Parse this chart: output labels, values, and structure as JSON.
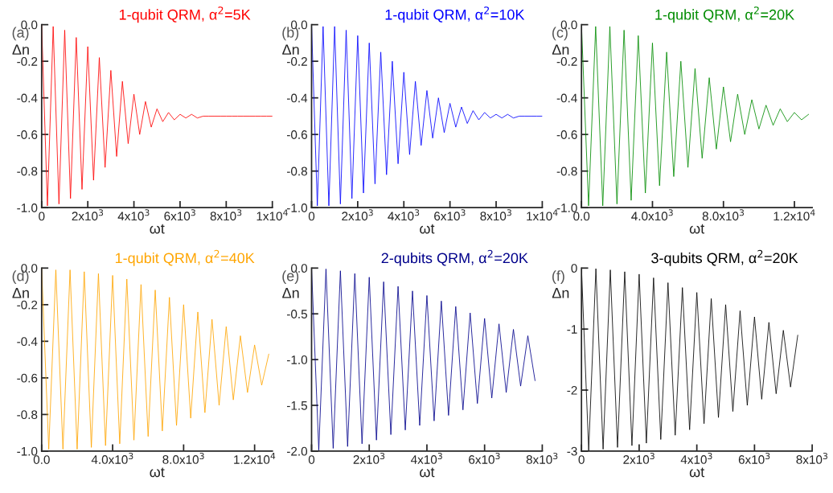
{
  "chart_data": [
    {
      "type": "line",
      "title": "1-qubit QRM, α$^{2}$=5K",
      "xlabel": "ωt",
      "ylabel": "Δn",
      "annotations": [
        "(a)"
      ],
      "grid": false,
      "legend": false,
      "xlim": [
        0,
        10000
      ],
      "xticks": [
        0,
        {
          "value": 2000,
          "label": "2x10$^{3}$"
        },
        {
          "value": 4000,
          "label": "4x10$^{3}$"
        },
        {
          "value": 6000,
          "label": "6x10$^{3}$"
        },
        {
          "value": 8000,
          "label": "8x10$^{3}$"
        },
        {
          "value": 10000,
          "label": "1x10$^{4}$"
        }
      ],
      "ylim": [
        -1,
        0
      ],
      "yticks": [
        {
          "value": -1,
          "label": "-1.0"
        },
        -0.8,
        -0.6,
        -0.4,
        -0.2,
        {
          "value": 0,
          "label": "0.0"
        }
      ],
      "series": [
        {
          "color": "#ff0000",
          "x": [
            0,
            250,
            500,
            750,
            1000,
            1250,
            1500,
            1750,
            2000,
            2250,
            2500,
            2750,
            3000,
            3250,
            3500,
            3750,
            4000,
            4250,
            4500,
            4750,
            5000,
            5250,
            5500,
            5750,
            6000,
            6250,
            6500,
            6750,
            7000,
            7250,
            7500,
            7750,
            8000,
            8250,
            8500,
            8750,
            9000,
            9250,
            9500,
            9750,
            10000
          ],
          "values": [
            0,
            -0.99,
            -0.01,
            -0.98,
            -0.03,
            -0.95,
            -0.07,
            -0.9,
            -0.12,
            -0.85,
            -0.18,
            -0.78,
            -0.25,
            -0.72,
            -0.31,
            -0.65,
            -0.38,
            -0.6,
            -0.42,
            -0.56,
            -0.46,
            -0.53,
            -0.48,
            -0.52,
            -0.49,
            -0.51,
            -0.49,
            -0.51,
            -0.5,
            -0.5,
            -0.5,
            -0.5,
            -0.5,
            -0.5,
            -0.5,
            -0.5,
            -0.5,
            -0.5,
            -0.5,
            -0.5,
            -0.5
          ]
        }
      ]
    },
    {
      "type": "line",
      "title": "1-qubit QRM, α$^{2}$=10K",
      "xlabel": "ωt",
      "ylabel": "Δn",
      "annotations": [
        "(b)"
      ],
      "grid": false,
      "legend": false,
      "xlim": [
        0,
        10000
      ],
      "xticks": [
        0,
        {
          "value": 2000,
          "label": "2x10$^{3}$"
        },
        {
          "value": 4000,
          "label": "4x10$^{3}$"
        },
        {
          "value": 6000,
          "label": "6x10$^{3}$"
        },
        {
          "value": 8000,
          "label": "8x10$^{3}$"
        },
        {
          "value": 10000,
          "label": "1x10$^{4}$"
        }
      ],
      "ylim": [
        -1,
        0
      ],
      "yticks": [
        {
          "value": -1,
          "label": "-1.0"
        },
        -0.8,
        -0.6,
        -0.4,
        -0.2,
        {
          "value": 0,
          "label": "0.0"
        }
      ],
      "series": [
        {
          "color": "#0000ff",
          "x": [
            0,
            250,
            500,
            750,
            1000,
            1250,
            1500,
            1750,
            2000,
            2250,
            2500,
            2750,
            3000,
            3250,
            3500,
            3750,
            4000,
            4250,
            4500,
            4750,
            5000,
            5250,
            5500,
            5750,
            6000,
            6250,
            6500,
            6750,
            7000,
            7250,
            7500,
            7750,
            8000,
            8250,
            8500,
            8750,
            9000,
            9250,
            9500,
            9750,
            10000
          ],
          "values": [
            0,
            -0.99,
            -0.01,
            -0.99,
            -0.01,
            -0.98,
            -0.03,
            -0.95,
            -0.06,
            -0.92,
            -0.1,
            -0.87,
            -0.15,
            -0.82,
            -0.2,
            -0.76,
            -0.26,
            -0.71,
            -0.31,
            -0.66,
            -0.36,
            -0.62,
            -0.4,
            -0.59,
            -0.43,
            -0.56,
            -0.45,
            -0.54,
            -0.47,
            -0.52,
            -0.48,
            -0.51,
            -0.49,
            -0.51,
            -0.49,
            -0.51,
            -0.5,
            -0.5,
            -0.5,
            -0.5,
            -0.5
          ]
        }
      ]
    },
    {
      "type": "line",
      "title": "1-qubit QRM, α$^{2}$=20K",
      "xlabel": "ωt",
      "ylabel": "Δn",
      "annotations": [
        "(c)"
      ],
      "grid": false,
      "legend": false,
      "xlim": [
        0,
        13000
      ],
      "xticks": [
        {
          "value": 0,
          "label": "0.0"
        },
        {
          "value": 4000,
          "label": "4.0x10$^{3}$"
        },
        {
          "value": 8000,
          "label": "8.0x10$^{3}$"
        },
        {
          "value": 12000,
          "label": "1.2x10$^{4}$"
        }
      ],
      "ylim": [
        -1,
        0
      ],
      "yticks": [
        {
          "value": -1,
          "label": "-1.0"
        },
        -0.8,
        -0.6,
        -0.4,
        -0.2,
        {
          "value": 0,
          "label": "0.0"
        }
      ],
      "series": [
        {
          "color": "#008c00",
          "x": [
            0,
            400,
            800,
            1200,
            1600,
            2000,
            2400,
            2800,
            3200,
            3600,
            4000,
            4400,
            4800,
            5200,
            5600,
            6000,
            6400,
            6800,
            7200,
            7600,
            8000,
            8400,
            8800,
            9200,
            9600,
            10000,
            10400,
            10800,
            11200,
            11600,
            12000,
            12400,
            12800
          ],
          "values": [
            0,
            -0.99,
            -0.01,
            -0.99,
            -0.01,
            -0.98,
            -0.03,
            -0.96,
            -0.06,
            -0.92,
            -0.1,
            -0.88,
            -0.15,
            -0.83,
            -0.2,
            -0.78,
            -0.24,
            -0.73,
            -0.29,
            -0.68,
            -0.34,
            -0.64,
            -0.38,
            -0.6,
            -0.41,
            -0.57,
            -0.44,
            -0.55,
            -0.46,
            -0.53,
            -0.48,
            -0.52,
            -0.49
          ]
        }
      ]
    },
    {
      "type": "line",
      "title": "1-qubit QRM, α$^{2}$=40K",
      "xlabel": "ωt",
      "ylabel": "Δn",
      "annotations": [
        "(d)"
      ],
      "grid": false,
      "legend": false,
      "xlim": [
        0,
        13000
      ],
      "xticks": [
        {
          "value": 0,
          "label": "0.0"
        },
        {
          "value": 4000,
          "label": "4.0x10$^{3}$"
        },
        {
          "value": 8000,
          "label": "8.0x10$^{3}$"
        },
        {
          "value": 12000,
          "label": "1.2x10$^{4}$"
        }
      ],
      "ylim": [
        -1,
        0
      ],
      "yticks": [
        {
          "value": -1,
          "label": "-1.0"
        },
        -0.8,
        -0.6,
        -0.4,
        -0.2,
        {
          "value": 0,
          "label": "0.0"
        }
      ],
      "series": [
        {
          "color": "#ffa500",
          "x": [
            0,
            400,
            800,
            1200,
            1600,
            2000,
            2400,
            2800,
            3200,
            3600,
            4000,
            4400,
            4800,
            5200,
            5600,
            6000,
            6400,
            6800,
            7200,
            7600,
            8000,
            8400,
            8800,
            9200,
            9600,
            10000,
            10400,
            10800,
            11200,
            11600,
            12000,
            12400,
            12800
          ],
          "values": [
            0,
            -0.99,
            -0.01,
            -0.99,
            -0.01,
            -0.99,
            -0.02,
            -0.98,
            -0.03,
            -0.97,
            -0.04,
            -0.96,
            -0.06,
            -0.94,
            -0.09,
            -0.92,
            -0.12,
            -0.89,
            -0.16,
            -0.86,
            -0.2,
            -0.82,
            -0.24,
            -0.79,
            -0.28,
            -0.75,
            -0.32,
            -0.72,
            -0.37,
            -0.68,
            -0.42,
            -0.64,
            -0.47
          ]
        }
      ]
    },
    {
      "type": "line",
      "title": "2-qubits QRM, α$^{2}$=20K",
      "xlabel": "ωt",
      "ylabel": "Δn",
      "annotations": [
        "(e)"
      ],
      "grid": false,
      "legend": false,
      "xlim": [
        0,
        8000
      ],
      "xticks": [
        0,
        {
          "value": 2000,
          "label": "2x10$^{3}$"
        },
        {
          "value": 4000,
          "label": "4x10$^{3}$"
        },
        {
          "value": 6000,
          "label": "6x10$^{3}$"
        },
        {
          "value": 8000,
          "label": "8x10$^{3}$"
        }
      ],
      "ylim": [
        -2,
        0
      ],
      "yticks": [
        {
          "value": -2,
          "label": "-2.0"
        },
        -1.5,
        {
          "value": -1,
          "label": "-1.0"
        },
        -0.5,
        {
          "value": 0,
          "label": "0.0"
        }
      ],
      "series": [
        {
          "color": "#00008b",
          "x": [
            0,
            250,
            500,
            750,
            1000,
            1250,
            1500,
            1750,
            2000,
            2250,
            2500,
            2750,
            3000,
            3250,
            3500,
            3750,
            4000,
            4250,
            4500,
            4750,
            5000,
            5250,
            5500,
            5750,
            6000,
            6250,
            6500,
            6750,
            7000,
            7250,
            7500,
            7750
          ],
          "values": [
            0,
            -1.99,
            -0.01,
            -1.97,
            -0.03,
            -1.95,
            -0.06,
            -1.92,
            -0.1,
            -1.88,
            -0.15,
            -1.82,
            -0.2,
            -1.77,
            -0.25,
            -1.72,
            -0.3,
            -1.67,
            -0.36,
            -1.61,
            -0.42,
            -1.55,
            -0.49,
            -1.48,
            -0.55,
            -1.42,
            -0.61,
            -1.36,
            -0.67,
            -1.29,
            -0.74,
            -1.23
          ]
        }
      ]
    },
    {
      "type": "line",
      "title": "3-qubits QRM, α$^{2}$=20K",
      "xlabel": "ωt",
      "ylabel": "Δn",
      "annotations": [
        "(f)"
      ],
      "grid": false,
      "legend": false,
      "xlim": [
        0,
        8000
      ],
      "xticks": [
        0,
        {
          "value": 2000,
          "label": "2x10$^{3}$"
        },
        {
          "value": 4000,
          "label": "4x10$^{3}$"
        },
        {
          "value": 6000,
          "label": "6x10$^{3}$"
        },
        {
          "value": 8000,
          "label": "8x10$^{3}$"
        }
      ],
      "ylim": [
        -3,
        0
      ],
      "yticks": [
        -3,
        -2,
        -1,
        0
      ],
      "series": [
        {
          "color": "#000000",
          "x": [
            0,
            250,
            500,
            750,
            1000,
            1250,
            1500,
            1750,
            2000,
            2250,
            2500,
            2750,
            3000,
            3250,
            3500,
            3750,
            4000,
            4250,
            4500,
            4750,
            5000,
            5250,
            5500,
            5750,
            6000,
            6250,
            6500,
            6750,
            7000,
            7250,
            7500
          ],
          "values": [
            0,
            -2.99,
            -0.01,
            -2.97,
            -0.03,
            -2.94,
            -0.06,
            -2.91,
            -0.1,
            -2.87,
            -0.16,
            -2.81,
            -0.24,
            -2.74,
            -0.32,
            -2.65,
            -0.4,
            -2.55,
            -0.5,
            -2.45,
            -0.6,
            -2.35,
            -0.7,
            -2.25,
            -0.8,
            -2.15,
            -0.89,
            -2.06,
            -1.02,
            -1.95,
            -1.1
          ]
        }
      ]
    }
  ]
}
